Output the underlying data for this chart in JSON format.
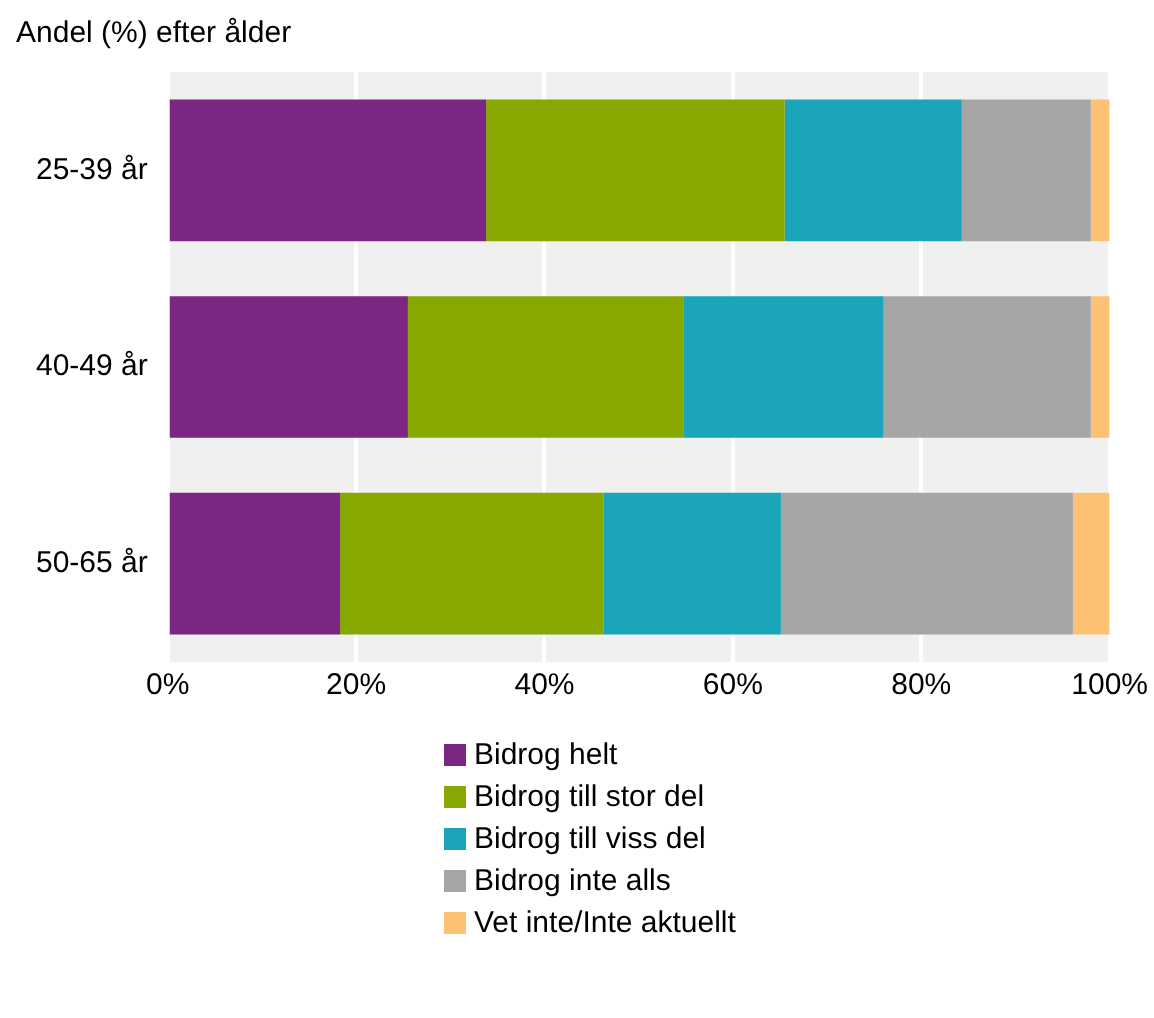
{
  "chart_data": {
    "type": "bar",
    "orientation": "horizontal",
    "stacked": true,
    "title": "Andel (%) efter ålder",
    "categories": [
      "25-39 år",
      "40-49 år",
      "50-65 år"
    ],
    "series": [
      {
        "name": "Bidrog helt",
        "color": "#7b2682",
        "values": [
          33.8,
          25.5,
          18.3
        ]
      },
      {
        "name": "Bidrog till stor del",
        "color": "#86a800",
        "values": [
          31.7,
          29.3,
          28.0
        ]
      },
      {
        "name": "Bidrog till viss del",
        "color": "#1ba5b8",
        "values": [
          18.8,
          21.2,
          18.8
        ]
      },
      {
        "name": "Bidrog inte alls",
        "color": "#a6a6a6",
        "values": [
          13.7,
          22.0,
          31.0
        ]
      },
      {
        "name": "Vet inte/Inte aktuellt",
        "color": "#fdc173",
        "values": [
          2.0,
          2.0,
          3.9
        ]
      }
    ],
    "xlim": [
      0,
      100
    ],
    "xticks": [
      {
        "value": 0,
        "label": "0%"
      },
      {
        "value": 20,
        "label": "20%"
      },
      {
        "value": 40,
        "label": "40%"
      },
      {
        "value": 60,
        "label": "60%"
      },
      {
        "value": 80,
        "label": "80%"
      },
      {
        "value": 100,
        "label": "100%"
      }
    ],
    "grid": "x",
    "legend": "bottom"
  }
}
